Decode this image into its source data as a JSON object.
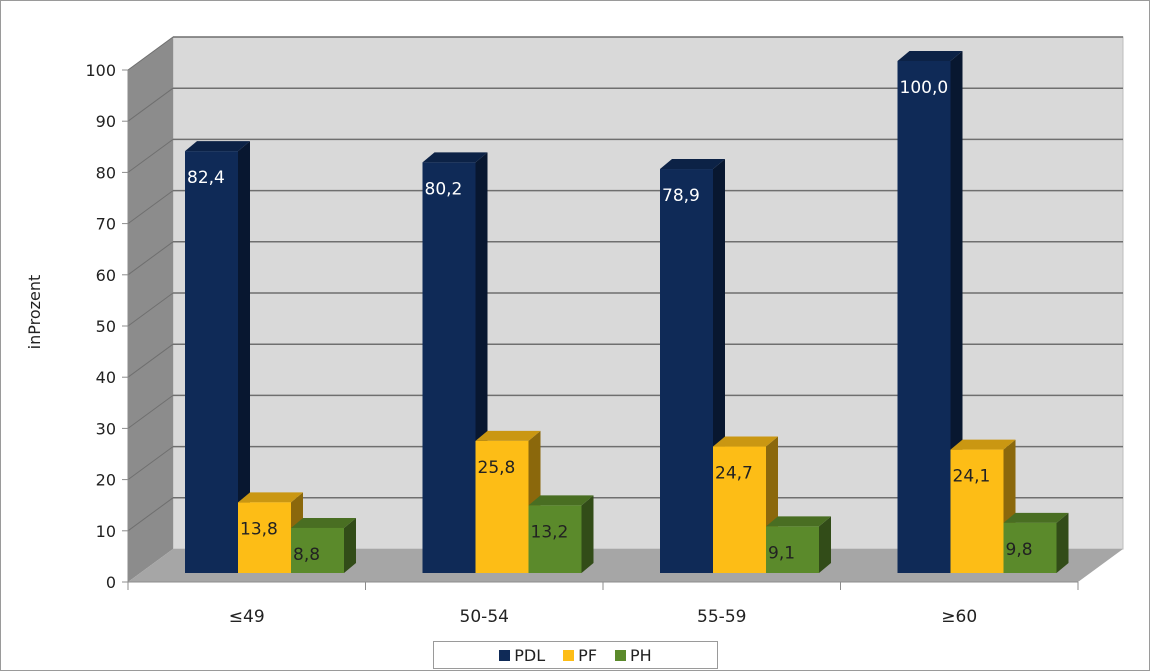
{
  "chart_data": {
    "type": "bar",
    "ylabel": "inProzent",
    "ylim": [
      0,
      100
    ],
    "yticks": [
      0,
      10,
      20,
      30,
      40,
      50,
      60,
      70,
      80,
      90,
      100
    ],
    "categories": [
      "≤49",
      "50-54",
      "55-59",
      "≥60"
    ],
    "series": [
      {
        "name": "PDL",
        "values": [
          82.4,
          80.2,
          78.9,
          100.0
        ],
        "labels": [
          "82,4",
          "80,2",
          "78,9",
          "100,0"
        ],
        "color": "#0f2a57"
      },
      {
        "name": "PF",
        "values": [
          13.8,
          25.8,
          24.7,
          24.1
        ],
        "labels": [
          "13,8",
          "25,8",
          "24,7",
          "24,1"
        ],
        "color": "#fdbd16"
      },
      {
        "name": "PH",
        "values": [
          8.8,
          13.2,
          9.1,
          9.8
        ],
        "labels": [
          "8,8",
          "13,2",
          "9,1",
          "9,8"
        ],
        "color": "#5b8a2b"
      }
    ],
    "grid": true,
    "legend": "bottom",
    "style": "3d-column"
  }
}
